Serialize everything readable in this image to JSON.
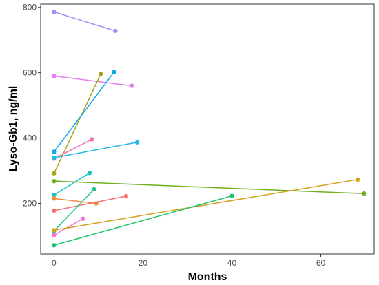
{
  "chart_data": {
    "type": "line",
    "title": "",
    "xlabel": "Months",
    "ylabel": "Lyso-Gb1, ng/ml",
    "xlim": [
      -3,
      72
    ],
    "ylim": [
      45,
      810
    ],
    "x_ticks": [
      0,
      20,
      40,
      60
    ],
    "y_ticks": [
      200,
      400,
      600,
      800
    ],
    "grid": false,
    "legend": "none",
    "series": [
      {
        "color": "#a78bfa",
        "x": [
          0,
          13.8
        ],
        "y": [
          786,
          728
        ]
      },
      {
        "color": "#e879f9",
        "x": [
          0,
          17.5
        ],
        "y": [
          590,
          560
        ]
      },
      {
        "color": "#a3a317",
        "x": [
          0,
          10.5
        ],
        "y": [
          292,
          596
        ]
      },
      {
        "color": "#0ea5e9",
        "x": [
          0,
          13.5
        ],
        "y": [
          358,
          602
        ]
      },
      {
        "color": "#f472b6",
        "x": [
          0,
          8.5
        ],
        "y": [
          337,
          396
        ]
      },
      {
        "color": "#22b8e6",
        "x": [
          0,
          18.7
        ],
        "y": [
          340,
          387
        ]
      },
      {
        "color": "#70b01e",
        "x": [
          0,
          69.7
        ],
        "y": [
          268,
          230
        ]
      },
      {
        "color": "#18c4c4",
        "x": [
          0,
          8.0
        ],
        "y": [
          226,
          293
        ]
      },
      {
        "color": "#f08a3c",
        "x": [
          0,
          9.5
        ],
        "y": [
          215,
          200
        ]
      },
      {
        "color": "#f87171",
        "x": [
          0,
          16.2
        ],
        "y": [
          178,
          222
        ]
      },
      {
        "color": "#22c48a",
        "x": [
          0,
          9.0
        ],
        "y": [
          116,
          243
        ]
      },
      {
        "color": "#f472d6",
        "x": [
          0,
          6.5
        ],
        "y": [
          103,
          153
        ]
      },
      {
        "color": "#d4a11e",
        "x": [
          0,
          68.3
        ],
        "y": [
          118,
          273
        ]
      },
      {
        "color": "#1ec46a",
        "x": [
          0,
          40.0
        ],
        "y": [
          72,
          223
        ]
      }
    ]
  }
}
